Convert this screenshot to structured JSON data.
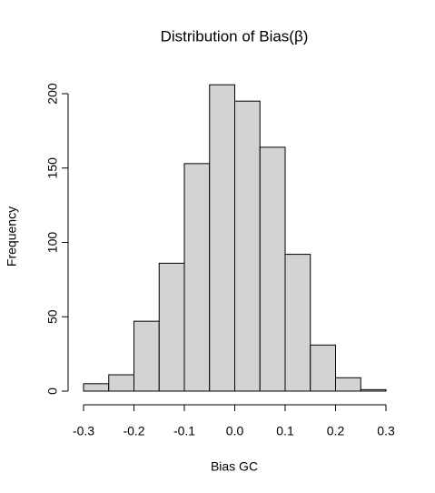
{
  "chart_data": {
    "type": "histogram",
    "title": "Distribution of Bias(β)",
    "xlabel": "Bias GC",
    "ylabel": "Frequency",
    "bins": [
      -0.3,
      -0.25,
      -0.2,
      -0.15,
      -0.1,
      -0.05,
      0,
      0.05,
      0.1,
      0.15,
      0.2,
      0.25,
      0.3
    ],
    "values": [
      5,
      11,
      47,
      86,
      153,
      206,
      195,
      164,
      92,
      31,
      9,
      1
    ],
    "color": "#d3d3d3",
    "xlim": [
      -0.3,
      0.3
    ],
    "xticks": [
      -0.3,
      -0.2,
      -0.1,
      {
        "value": 0,
        "label": "0.0"
      },
      0.1,
      0.2,
      0.3
    ],
    "ylim": [
      0,
      200
    ],
    "yticks": [
      0,
      50,
      100,
      150,
      200
    ]
  }
}
